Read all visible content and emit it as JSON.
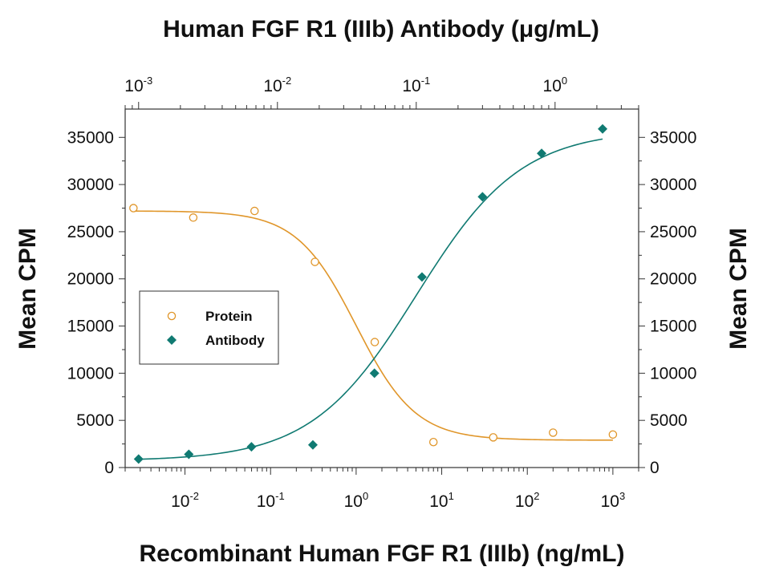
{
  "chart_data": {
    "type": "scatter",
    "title": "Human FGF R1 (IIIb) Antibody (μg/mL)",
    "xlabel": "Recombinant Human FGF R1 (IIIb) (ng/mL)",
    "ylabel": "Mean CPM",
    "ylabel_right": "Mean CPM",
    "x_scale": "log",
    "xlim": [
      0.002,
      2000
    ],
    "ylim": [
      0,
      38000
    ],
    "x_ticks": [
      {
        "base": "10",
        "exp": "-2",
        "value": 0.01
      },
      {
        "base": "10",
        "exp": "-1",
        "value": 0.1
      },
      {
        "base": "10",
        "exp": "0",
        "value": 1
      },
      {
        "base": "10",
        "exp": "1",
        "value": 10
      },
      {
        "base": "10",
        "exp": "2",
        "value": 100
      },
      {
        "base": "10",
        "exp": "3",
        "value": 1000
      }
    ],
    "top_axis": {
      "scale": "log",
      "xlim": [
        0.0008,
        4
      ],
      "ticks": [
        {
          "base": "10",
          "exp": "-3",
          "value": 0.001
        },
        {
          "base": "10",
          "exp": "-2",
          "value": 0.01
        },
        {
          "base": "10",
          "exp": "-1",
          "value": 0.1
        },
        {
          "base": "10",
          "exp": "0",
          "value": 1
        }
      ]
    },
    "y_ticks": [
      "0",
      "5000",
      "10000",
      "15000",
      "20000",
      "25000",
      "30000",
      "35000"
    ],
    "legend_position": "middle-left",
    "grid": false,
    "series": [
      {
        "name": "Protein",
        "marker": "open-circle",
        "color": "#e0962a",
        "axis": "bottom",
        "x": [
          0.0025,
          0.0125,
          0.065,
          0.33,
          1.65,
          8,
          40,
          200,
          1000
        ],
        "y": [
          27500,
          26500,
          27200,
          21800,
          13300,
          2700,
          3200,
          3700,
          3500
        ],
        "fit": {
          "bottom": 2900,
          "top": 27200,
          "ec50": 1.0,
          "hill": 1.25
        }
      },
      {
        "name": "Antibody",
        "marker": "filled-diamond",
        "color": "#107a72",
        "axis": "top",
        "x": [
          0.001,
          0.0023,
          0.0065,
          0.018,
          0.05,
          0.11,
          0.3,
          0.8,
          2.2
        ],
        "y": [
          900,
          1400,
          2200,
          2400,
          10000,
          20200,
          28700,
          33300,
          35900
        ],
        "fit": {
          "bottom": 700,
          "top": 35800,
          "ec50": 0.1,
          "hill": 1.15
        }
      }
    ]
  }
}
